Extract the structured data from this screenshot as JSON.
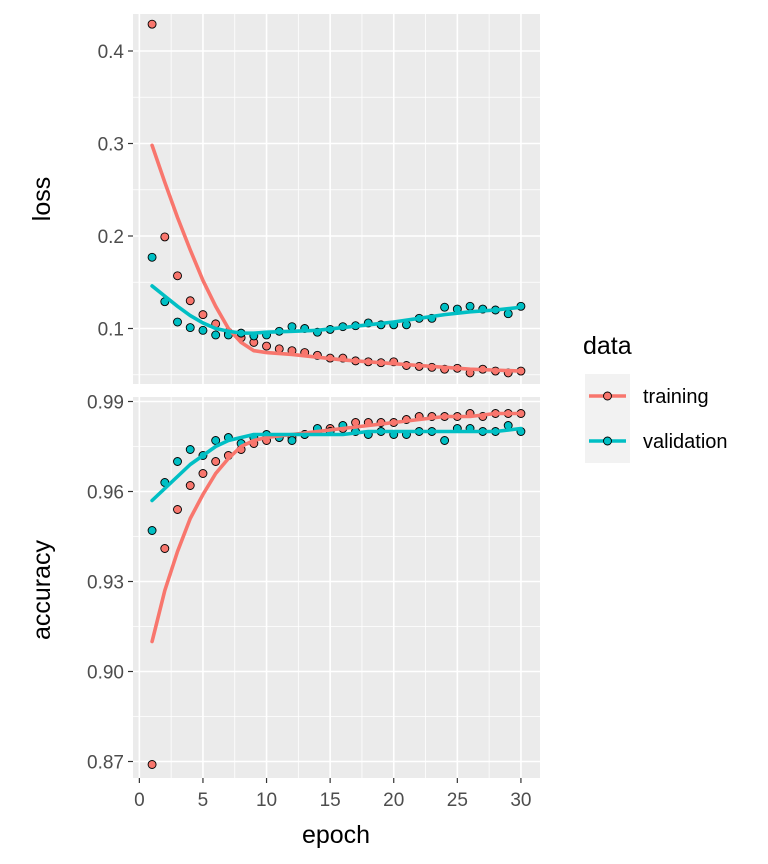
{
  "chart_data": {
    "type": "scatter",
    "xlabel": "epoch",
    "xlim": [
      -0.5,
      31.5
    ],
    "xticks": [
      0,
      5,
      10,
      15,
      20,
      25,
      30
    ],
    "xtick_labels": [
      "0",
      "5",
      "10",
      "15",
      "20",
      "25",
      "30"
    ],
    "grid": true,
    "legend": {
      "title": "data",
      "placement": "right",
      "entries": [
        {
          "label": "training",
          "color": "#F8766D"
        },
        {
          "label": "validation",
          "color": "#00BFC4"
        }
      ]
    },
    "panels": [
      {
        "ylabel": "loss",
        "ylim": [
          0.04,
          0.44
        ],
        "yticks": [
          0.1,
          0.2,
          0.3,
          0.4
        ],
        "ytick_labels": [
          "0.1",
          "0.2",
          "0.3",
          "0.4"
        ],
        "series": [
          {
            "name": "training",
            "color": "#F8766D",
            "points": [
              [
                1,
                0.429
              ],
              [
                2,
                0.199
              ],
              [
                3,
                0.157
              ],
              [
                4,
                0.13
              ],
              [
                5,
                0.115
              ],
              [
                6,
                0.105
              ],
              [
                7,
                0.096
              ],
              [
                8,
                0.09
              ],
              [
                9,
                0.085
              ],
              [
                10,
                0.081
              ],
              [
                11,
                0.078
              ],
              [
                12,
                0.076
              ],
              [
                13,
                0.074
              ],
              [
                14,
                0.071
              ],
              [
                15,
                0.068
              ],
              [
                16,
                0.068
              ],
              [
                17,
                0.065
              ],
              [
                18,
                0.064
              ],
              [
                19,
                0.063
              ],
              [
                20,
                0.064
              ],
              [
                21,
                0.06
              ],
              [
                22,
                0.059
              ],
              [
                23,
                0.058
              ],
              [
                24,
                0.056
              ],
              [
                25,
                0.057
              ],
              [
                26,
                0.052
              ],
              [
                27,
                0.056
              ],
              [
                28,
                0.054
              ],
              [
                29,
                0.052
              ],
              [
                30,
                0.054
              ]
            ],
            "smooth": [
              [
                1,
                0.298
              ],
              [
                2,
                0.258
              ],
              [
                3,
                0.22
              ],
              [
                4,
                0.185
              ],
              [
                5,
                0.152
              ],
              [
                6,
                0.124
              ],
              [
                7,
                0.1
              ],
              [
                8,
                0.085
              ],
              [
                9,
                0.076
              ],
              [
                10,
                0.074
              ],
              [
                12,
                0.072
              ],
              [
                14,
                0.069
              ],
              [
                16,
                0.066
              ],
              [
                18,
                0.064
              ],
              [
                20,
                0.062
              ],
              [
                22,
                0.06
              ],
              [
                24,
                0.058
              ],
              [
                26,
                0.056
              ],
              [
                28,
                0.055
              ],
              [
                30,
                0.054
              ]
            ]
          },
          {
            "name": "validation",
            "color": "#00BFC4",
            "points": [
              [
                1,
                0.177
              ],
              [
                2,
                0.129
              ],
              [
                3,
                0.107
              ],
              [
                4,
                0.101
              ],
              [
                5,
                0.098
              ],
              [
                6,
                0.093
              ],
              [
                7,
                0.093
              ],
              [
                8,
                0.095
              ],
              [
                9,
                0.092
              ],
              [
                10,
                0.093
              ],
              [
                11,
                0.097
              ],
              [
                12,
                0.102
              ],
              [
                13,
                0.1
              ],
              [
                14,
                0.096
              ],
              [
                15,
                0.099
              ],
              [
                16,
                0.102
              ],
              [
                17,
                0.103
              ],
              [
                18,
                0.106
              ],
              [
                19,
                0.104
              ],
              [
                20,
                0.104
              ],
              [
                21,
                0.104
              ],
              [
                22,
                0.111
              ],
              [
                23,
                0.111
              ],
              [
                24,
                0.123
              ],
              [
                25,
                0.121
              ],
              [
                26,
                0.124
              ],
              [
                27,
                0.121
              ],
              [
                28,
                0.12
              ],
              [
                29,
                0.116
              ],
              [
                30,
                0.124
              ]
            ],
            "smooth": [
              [
                1,
                0.146
              ],
              [
                2,
                0.135
              ],
              [
                3,
                0.124
              ],
              [
                4,
                0.114
              ],
              [
                5,
                0.106
              ],
              [
                6,
                0.1
              ],
              [
                7,
                0.097
              ],
              [
                8,
                0.095
              ],
              [
                9,
                0.095
              ],
              [
                10,
                0.096
              ],
              [
                12,
                0.097
              ],
              [
                14,
                0.098
              ],
              [
                16,
                0.101
              ],
              [
                18,
                0.104
              ],
              [
                20,
                0.107
              ],
              [
                22,
                0.111
              ],
              [
                24,
                0.115
              ],
              [
                26,
                0.118
              ],
              [
                28,
                0.12
              ],
              [
                30,
                0.123
              ]
            ]
          }
        ]
      },
      {
        "ylabel": "accuracy",
        "ylim": [
          0.8645,
          0.9915
        ],
        "yticks": [
          0.87,
          0.9,
          0.93,
          0.96,
          0.99
        ],
        "ytick_labels": [
          "0.87",
          "0.90",
          "0.93",
          "0.96",
          "0.99"
        ],
        "series": [
          {
            "name": "training",
            "color": "#F8766D",
            "points": [
              [
                1,
                0.869
              ],
              [
                2,
                0.941
              ],
              [
                3,
                0.954
              ],
              [
                4,
                0.962
              ],
              [
                5,
                0.966
              ],
              [
                6,
                0.97
              ],
              [
                7,
                0.972
              ],
              [
                8,
                0.974
              ],
              [
                9,
                0.976
              ],
              [
                10,
                0.977
              ],
              [
                11,
                0.978
              ],
              [
                12,
                0.978
              ],
              [
                13,
                0.979
              ],
              [
                14,
                0.98
              ],
              [
                15,
                0.981
              ],
              [
                16,
                0.981
              ],
              [
                17,
                0.983
              ],
              [
                18,
                0.983
              ],
              [
                19,
                0.983
              ],
              [
                20,
                0.983
              ],
              [
                21,
                0.984
              ],
              [
                22,
                0.985
              ],
              [
                23,
                0.985
              ],
              [
                24,
                0.985
              ],
              [
                25,
                0.985
              ],
              [
                26,
                0.986
              ],
              [
                27,
                0.985
              ],
              [
                28,
                0.986
              ],
              [
                29,
                0.986
              ],
              [
                30,
                0.986
              ]
            ],
            "smooth": [
              [
                1,
                0.91
              ],
              [
                2,
                0.927
              ],
              [
                3,
                0.94
              ],
              [
                4,
                0.951
              ],
              [
                5,
                0.959
              ],
              [
                6,
                0.966
              ],
              [
                7,
                0.971
              ],
              [
                8,
                0.975
              ],
              [
                9,
                0.977
              ],
              [
                10,
                0.978
              ],
              [
                12,
                0.979
              ],
              [
                14,
                0.98
              ],
              [
                16,
                0.981
              ],
              [
                18,
                0.982
              ],
              [
                20,
                0.983
              ],
              [
                22,
                0.984
              ],
              [
                24,
                0.985
              ],
              [
                26,
                0.985
              ],
              [
                28,
                0.986
              ],
              [
                30,
                0.986
              ]
            ]
          },
          {
            "name": "validation",
            "color": "#00BFC4",
            "points": [
              [
                1,
                0.947
              ],
              [
                2,
                0.963
              ],
              [
                3,
                0.97
              ],
              [
                4,
                0.974
              ],
              [
                5,
                0.972
              ],
              [
                6,
                0.977
              ],
              [
                7,
                0.978
              ],
              [
                8,
                0.976
              ],
              [
                9,
                0.978
              ],
              [
                10,
                0.979
              ],
              [
                11,
                0.978
              ],
              [
                12,
                0.977
              ],
              [
                13,
                0.979
              ],
              [
                14,
                0.981
              ],
              [
                15,
                0.98
              ],
              [
                16,
                0.982
              ],
              [
                17,
                0.98
              ],
              [
                18,
                0.979
              ],
              [
                19,
                0.98
              ],
              [
                20,
                0.979
              ],
              [
                21,
                0.979
              ],
              [
                22,
                0.98
              ],
              [
                23,
                0.98
              ],
              [
                24,
                0.977
              ],
              [
                25,
                0.981
              ],
              [
                26,
                0.981
              ],
              [
                27,
                0.98
              ],
              [
                28,
                0.98
              ],
              [
                29,
                0.982
              ],
              [
                30,
                0.98
              ]
            ],
            "smooth": [
              [
                1,
                0.957
              ],
              [
                2,
                0.961
              ],
              [
                3,
                0.965
              ],
              [
                4,
                0.969
              ],
              [
                5,
                0.972
              ],
              [
                6,
                0.975
              ],
              [
                7,
                0.977
              ],
              [
                8,
                0.978
              ],
              [
                9,
                0.979
              ],
              [
                10,
                0.979
              ],
              [
                12,
                0.979
              ],
              [
                14,
                0.979
              ],
              [
                16,
                0.979
              ],
              [
                18,
                0.98
              ],
              [
                20,
                0.98
              ],
              [
                22,
                0.98
              ],
              [
                24,
                0.98
              ],
              [
                26,
                0.98
              ],
              [
                28,
                0.98
              ],
              [
                30,
                0.981
              ]
            ]
          }
        ]
      }
    ]
  }
}
